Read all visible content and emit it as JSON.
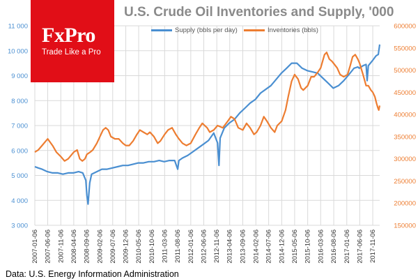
{
  "logo": {
    "name": "FxPro",
    "tagline": "Trade Like a Pro",
    "color": "#e10e17"
  },
  "source_note": "Data: U.S. Energy Information Administration",
  "chart_data": {
    "type": "line",
    "title": "U.S. Crude Oil Inventories and Supply, '000",
    "xlabel": "",
    "grid": true,
    "legend_position": "top",
    "x_ticks": [
      "2007-01-06",
      "2007-06-06",
      "2007-11-06",
      "2008-04-06",
      "2008-09-06",
      "2009-02-06",
      "2009-07-06",
      "2009-12-06",
      "2010-05-06",
      "2010-10-06",
      "2011-03-06",
      "2011-08-06",
      "2012-01-06",
      "2012-06-06",
      "2012-11-06",
      "2013-04-06",
      "2013-09-06",
      "2014-02-06",
      "2014-07-06",
      "2014-12-06",
      "2015-05-06",
      "2015-10-06",
      "2016-03-06",
      "2016-08-06",
      "2017-01-06",
      "2017-06-06",
      "2017-11-06"
    ],
    "x_range": [
      "2007-01-06",
      "2018-01-26"
    ],
    "y_left": {
      "ticks": [
        "3 000",
        "4 000",
        "5 000",
        "6 000",
        "7 000",
        "8 000",
        "9 000",
        "10 000",
        "11 000"
      ],
      "range": [
        3000,
        11000
      ],
      "color": "#4a8fd1"
    },
    "y_right": {
      "ticks": [
        "150000",
        "200000",
        "250000",
        "300000",
        "350000",
        "400000",
        "450000",
        "500000",
        "550000",
        "600000"
      ],
      "range": [
        150000,
        600000
      ],
      "color": "#ed7d31"
    },
    "series": [
      {
        "name": "Supply (bbls per day)",
        "axis": "left",
        "color": "#4a8fd1",
        "points": [
          [
            "2007-01-06",
            5350
          ],
          [
            "2007-02-15",
            5300
          ],
          [
            "2007-04-01",
            5250
          ],
          [
            "2007-06-01",
            5150
          ],
          [
            "2007-08-01",
            5100
          ],
          [
            "2007-10-01",
            5100
          ],
          [
            "2007-12-01",
            5050
          ],
          [
            "2008-02-01",
            5100
          ],
          [
            "2008-04-01",
            5100
          ],
          [
            "2008-06-01",
            5150
          ],
          [
            "2008-07-20",
            5100
          ],
          [
            "2008-08-25",
            4800
          ],
          [
            "2008-09-06",
            4200
          ],
          [
            "2008-09-20",
            3850
          ],
          [
            "2008-10-10",
            4700
          ],
          [
            "2008-11-01",
            5050
          ],
          [
            "2009-01-01",
            5150
          ],
          [
            "2009-03-01",
            5250
          ],
          [
            "2009-05-01",
            5250
          ],
          [
            "2009-07-01",
            5300
          ],
          [
            "2009-09-01",
            5350
          ],
          [
            "2009-11-01",
            5400
          ],
          [
            "2010-01-01",
            5400
          ],
          [
            "2010-03-01",
            5450
          ],
          [
            "2010-05-01",
            5500
          ],
          [
            "2010-07-01",
            5500
          ],
          [
            "2010-09-01",
            5550
          ],
          [
            "2010-11-01",
            5550
          ],
          [
            "2011-01-01",
            5600
          ],
          [
            "2011-03-01",
            5550
          ],
          [
            "2011-05-01",
            5600
          ],
          [
            "2011-07-01",
            5600
          ],
          [
            "2011-08-06",
            5250
          ],
          [
            "2011-08-20",
            5600
          ],
          [
            "2011-10-01",
            5700
          ],
          [
            "2011-12-01",
            5800
          ],
          [
            "2012-02-01",
            5950
          ],
          [
            "2012-04-01",
            6100
          ],
          [
            "2012-06-01",
            6250
          ],
          [
            "2012-08-01",
            6400
          ],
          [
            "2012-10-01",
            6700
          ],
          [
            "2012-11-15",
            6300
          ],
          [
            "2012-12-01",
            5400
          ],
          [
            "2012-12-15",
            6500
          ],
          [
            "2013-02-01",
            6900
          ],
          [
            "2013-04-01",
            7100
          ],
          [
            "2013-06-01",
            7250
          ],
          [
            "2013-08-01",
            7500
          ],
          [
            "2013-10-01",
            7700
          ],
          [
            "2013-12-01",
            7900
          ],
          [
            "2014-02-01",
            8050
          ],
          [
            "2014-04-01",
            8300
          ],
          [
            "2014-06-01",
            8450
          ],
          [
            "2014-08-01",
            8600
          ],
          [
            "2014-10-01",
            8850
          ],
          [
            "2014-12-01",
            9100
          ],
          [
            "2015-02-01",
            9300
          ],
          [
            "2015-04-01",
            9500
          ],
          [
            "2015-06-01",
            9500
          ],
          [
            "2015-08-01",
            9300
          ],
          [
            "2015-10-01",
            9200
          ],
          [
            "2015-12-01",
            9150
          ],
          [
            "2016-02-01",
            9100
          ],
          [
            "2016-04-01",
            8900
          ],
          [
            "2016-06-01",
            8700
          ],
          [
            "2016-08-01",
            8500
          ],
          [
            "2016-10-01",
            8600
          ],
          [
            "2016-12-01",
            8800
          ],
          [
            "2017-02-01",
            9050
          ],
          [
            "2017-04-01",
            9300
          ],
          [
            "2017-05-15",
            9350
          ],
          [
            "2017-06-01",
            9300
          ],
          [
            "2017-07-15",
            9400
          ],
          [
            "2017-08-20",
            9450
          ],
          [
            "2017-09-01",
            8800
          ],
          [
            "2017-09-15",
            9400
          ],
          [
            "2017-11-01",
            9600
          ],
          [
            "2017-12-15",
            9800
          ],
          [
            "2018-01-10",
            9850
          ],
          [
            "2018-01-26",
            10250
          ]
        ]
      },
      {
        "name": "Inventories (bbls)",
        "axis": "right",
        "color": "#ed7d31",
        "points": [
          [
            "2007-01-06",
            315000
          ],
          [
            "2007-02-15",
            320000
          ],
          [
            "2007-04-01",
            330000
          ],
          [
            "2007-05-15",
            340000
          ],
          [
            "2007-06-06",
            345000
          ],
          [
            "2007-08-01",
            330000
          ],
          [
            "2007-09-15",
            315000
          ],
          [
            "2007-11-06",
            305000
          ],
          [
            "2007-12-20",
            295000
          ],
          [
            "2008-02-01",
            300000
          ],
          [
            "2008-03-15",
            310000
          ],
          [
            "2008-04-06",
            315000
          ],
          [
            "2008-05-15",
            320000
          ],
          [
            "2008-06-15",
            300000
          ],
          [
            "2008-07-15",
            295000
          ],
          [
            "2008-08-15",
            300000
          ],
          [
            "2008-09-06",
            310000
          ],
          [
            "2008-10-15",
            315000
          ],
          [
            "2008-11-15",
            320000
          ],
          [
            "2009-01-01",
            335000
          ],
          [
            "2009-02-06",
            350000
          ],
          [
            "2009-03-15",
            365000
          ],
          [
            "2009-04-15",
            370000
          ],
          [
            "2009-05-15",
            365000
          ],
          [
            "2009-06-15",
            350000
          ],
          [
            "2009-08-01",
            345000
          ],
          [
            "2009-09-15",
            345000
          ],
          [
            "2009-11-01",
            335000
          ],
          [
            "2009-12-06",
            330000
          ],
          [
            "2010-01-15",
            330000
          ],
          [
            "2010-03-01",
            340000
          ],
          [
            "2010-04-15",
            355000
          ],
          [
            "2010-05-20",
            365000
          ],
          [
            "2010-07-01",
            360000
          ],
          [
            "2010-08-15",
            355000
          ],
          [
            "2010-09-15",
            360000
          ],
          [
            "2010-11-01",
            350000
          ],
          [
            "2010-12-15",
            335000
          ],
          [
            "2011-01-15",
            340000
          ],
          [
            "2011-03-06",
            355000
          ],
          [
            "2011-04-15",
            365000
          ],
          [
            "2011-06-01",
            370000
          ],
          [
            "2011-07-15",
            355000
          ],
          [
            "2011-08-20",
            345000
          ],
          [
            "2011-10-01",
            335000
          ],
          [
            "2011-11-15",
            330000
          ],
          [
            "2012-01-06",
            335000
          ],
          [
            "2012-03-01",
            355000
          ],
          [
            "2012-04-15",
            370000
          ],
          [
            "2012-05-20",
            380000
          ],
          [
            "2012-07-15",
            370000
          ],
          [
            "2012-08-15",
            360000
          ],
          [
            "2012-10-01",
            365000
          ],
          [
            "2012-11-15",
            375000
          ],
          [
            "2013-01-15",
            370000
          ],
          [
            "2013-03-15",
            385000
          ],
          [
            "2013-04-20",
            395000
          ],
          [
            "2013-06-01",
            390000
          ],
          [
            "2013-07-15",
            370000
          ],
          [
            "2013-09-06",
            365000
          ],
          [
            "2013-10-20",
            380000
          ],
          [
            "2013-12-01",
            370000
          ],
          [
            "2014-01-15",
            355000
          ],
          [
            "2014-02-15",
            360000
          ],
          [
            "2014-04-01",
            375000
          ],
          [
            "2014-05-10",
            395000
          ],
          [
            "2014-06-15",
            385000
          ],
          [
            "2014-08-01",
            370000
          ],
          [
            "2014-09-15",
            360000
          ],
          [
            "2014-10-15",
            375000
          ],
          [
            "2014-12-06",
            385000
          ],
          [
            "2015-01-20",
            410000
          ],
          [
            "2015-02-20",
            440000
          ],
          [
            "2015-04-01",
            475000
          ],
          [
            "2015-05-06",
            490000
          ],
          [
            "2015-06-15",
            480000
          ],
          [
            "2015-07-20",
            460000
          ],
          [
            "2015-08-15",
            455000
          ],
          [
            "2015-10-06",
            465000
          ],
          [
            "2015-11-15",
            485000
          ],
          [
            "2015-12-20",
            485000
          ],
          [
            "2016-02-01",
            495000
          ],
          [
            "2016-03-06",
            505000
          ],
          [
            "2016-04-20",
            535000
          ],
          [
            "2016-05-15",
            540000
          ],
          [
            "2016-06-15",
            525000
          ],
          [
            "2016-07-15",
            520000
          ],
          [
            "2016-08-06",
            515000
          ],
          [
            "2016-09-15",
            505000
          ],
          [
            "2016-10-20",
            490000
          ],
          [
            "2016-12-01",
            485000
          ],
          [
            "2017-01-15",
            490000
          ],
          [
            "2017-02-15",
            510000
          ],
          [
            "2017-03-15",
            530000
          ],
          [
            "2017-04-15",
            535000
          ],
          [
            "2017-05-15",
            525000
          ],
          [
            "2017-06-06",
            515000
          ],
          [
            "2017-07-15",
            490000
          ],
          [
            "2017-08-20",
            465000
          ],
          [
            "2017-09-15",
            465000
          ],
          [
            "2017-10-15",
            455000
          ],
          [
            "2017-11-06",
            450000
          ],
          [
            "2017-12-01",
            440000
          ],
          [
            "2017-12-20",
            425000
          ],
          [
            "2018-01-05",
            415000
          ],
          [
            "2018-01-15",
            410000
          ],
          [
            "2018-01-26",
            420000
          ]
        ]
      }
    ]
  }
}
